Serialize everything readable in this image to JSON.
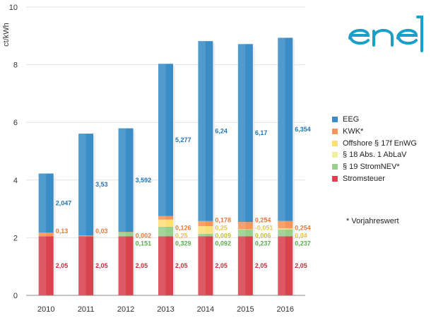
{
  "chart_data": {
    "type": "bar",
    "stacked": true,
    "categories": [
      "2010",
      "2011",
      "2012",
      "2013",
      "2014",
      "2015",
      "2016"
    ],
    "ylabel": "ct/kWh",
    "ylim": [
      0,
      10
    ],
    "yticks": [
      0,
      2,
      4,
      6,
      8,
      10
    ],
    "grid": true,
    "legend_position": "right",
    "series": [
      {
        "name": "Stromsteuer",
        "color": "#d9434e",
        "values": [
          2.05,
          2.05,
          2.05,
          2.05,
          2.05,
          2.05,
          2.05
        ],
        "labels": [
          "2,05",
          "2,05",
          "2,05",
          "2,05",
          "2,05",
          "2,05",
          "2,05"
        ],
        "label_color": "#c0303d"
      },
      {
        "name": "§ 19 StromNEV*",
        "color": "#98cf8c",
        "values": [
          0,
          0,
          0.151,
          0.329,
          0.092,
          0.237,
          0.237
        ],
        "labels": [
          "",
          "",
          "0,151",
          "0,329",
          "0,092",
          "0,237",
          "0,237"
        ],
        "label_color": "#5aad4e"
      },
      {
        "name": "§ 18 Abs. 1 AbLaV",
        "color": "#f2ef9a",
        "values": [
          0,
          0,
          0,
          0,
          0.009,
          0.006,
          0
        ],
        "labels": [
          "",
          "",
          "",
          "",
          "0,009",
          "0,006",
          ""
        ],
        "label_color": "#c7c03a"
      },
      {
        "name": "Offshore § 17f EnWG",
        "color": "#fbe07a",
        "values": [
          0,
          0,
          0,
          0.25,
          0.25,
          -0.051,
          0.04
        ],
        "labels": [
          "",
          "",
          "",
          "0,25",
          "0,25",
          "-0,051",
          "0,04"
        ],
        "label_color": "#e8c34a"
      },
      {
        "name": "KWK*",
        "color": "#f5955a",
        "values": [
          0.13,
          0.03,
          0.002,
          0.126,
          0.178,
          0.254,
          0.254
        ],
        "labels": [
          "0,13",
          "0,03",
          "0,002",
          "0,126",
          "0,178",
          "0,254",
          "0,254"
        ],
        "label_color": "#e8783a"
      },
      {
        "name": "EEG",
        "color": "#3a8dc6",
        "values": [
          2.047,
          3.53,
          3.592,
          5.277,
          6.24,
          6.17,
          6.354
        ],
        "labels": [
          "2,047",
          "3,53",
          "3,592",
          "5,277",
          "6,24",
          "6,17",
          "6,354"
        ],
        "label_color": "#2277b5"
      }
    ],
    "legend_order": [
      "EEG",
      "KWK*",
      "Offshore § 17f EnWG",
      "§ 18 Abs. 1 AbLaV",
      "§ 19 StromNEV*",
      "Stromsteuer"
    ],
    "annotation": "* Vorjahreswert"
  },
  "logo": {
    "text": "ene'",
    "color": "#1aa0c8"
  }
}
